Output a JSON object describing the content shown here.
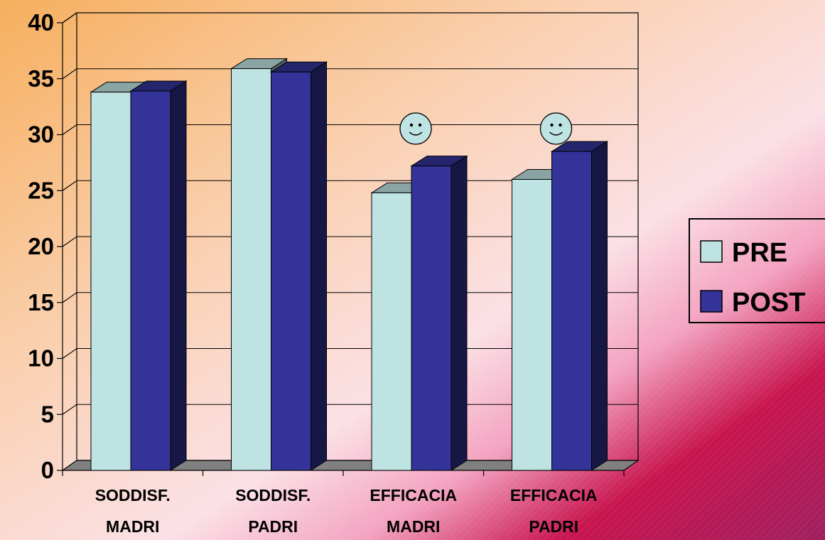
{
  "chart_data": {
    "type": "bar",
    "style": "3d-clustered",
    "categories": [
      [
        "SODDISF.",
        "MADRI"
      ],
      [
        "SODDISF.",
        "PADRI"
      ],
      [
        "EFFICACIA",
        "MADRI"
      ],
      [
        "EFFICACIA",
        "PADRI"
      ]
    ],
    "series": [
      {
        "name": "PRE",
        "values": [
          33.8,
          35.9,
          24.8,
          26.0
        ],
        "color": "#bfe3e3"
      },
      {
        "name": "POST",
        "values": [
          33.9,
          35.6,
          27.2,
          28.5
        ],
        "color": "#333399"
      }
    ],
    "ylim": [
      0,
      40
    ],
    "yticks": [
      0,
      5,
      10,
      15,
      20,
      25,
      30,
      35,
      40
    ],
    "grid": true,
    "legend_position": "right",
    "annotations": [
      {
        "icon": "smiley-icon",
        "category": 2
      },
      {
        "icon": "smiley-icon",
        "category": 3
      }
    ]
  }
}
